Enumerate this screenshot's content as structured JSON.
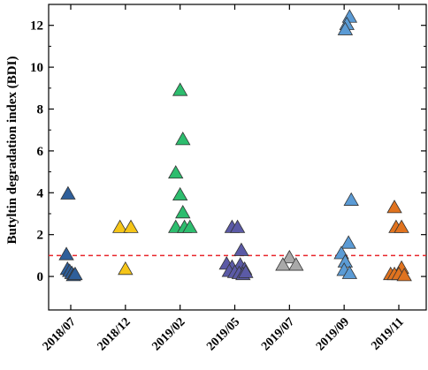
{
  "chart_data": {
    "type": "scatter",
    "title": "",
    "xlabel": "",
    "ylabel": "Butyltin degradation index (BDI)",
    "categories": [
      "2018/07",
      "2018/12",
      "2019/02",
      "2019/05",
      "2019/07",
      "2019/09",
      "2019/11"
    ],
    "ylim": [
      -1.6,
      13
    ],
    "yticks": [
      0,
      2,
      4,
      6,
      8,
      10,
      12
    ],
    "marker": "triangle",
    "reference_line": {
      "y": 1.0,
      "color": "#e8262b",
      "style": "dashed"
    },
    "series": [
      {
        "category": "2018/07",
        "color": "#2f5f9a",
        "points": [
          [
            -0.05,
            3.95
          ],
          [
            -0.08,
            1.05
          ],
          [
            -0.06,
            0.35
          ],
          [
            -0.02,
            0.25
          ],
          [
            0.02,
            0.15
          ],
          [
            0.05,
            0.05
          ],
          [
            0.08,
            0.1
          ]
        ]
      },
      {
        "category": "2018/12",
        "color": "#f5c518",
        "points": [
          [
            -0.1,
            2.35
          ],
          [
            0.1,
            2.35
          ],
          [
            0.0,
            0.35
          ]
        ]
      },
      {
        "category": "2019/02",
        "color": "#2dbd6e",
        "points": [
          [
            0.0,
            8.9
          ],
          [
            0.05,
            6.55
          ],
          [
            -0.08,
            4.95
          ],
          [
            0.0,
            3.9
          ],
          [
            0.05,
            3.05
          ],
          [
            -0.08,
            2.35
          ],
          [
            0.08,
            2.35
          ],
          [
            0.18,
            2.35
          ]
        ]
      },
      {
        "category": "2019/05",
        "color": "#5b5aa6",
        "points": [
          [
            -0.05,
            2.35
          ],
          [
            0.05,
            2.35
          ],
          [
            0.12,
            1.25
          ],
          [
            -0.15,
            0.6
          ],
          [
            -0.05,
            0.45
          ],
          [
            0.1,
            0.55
          ],
          [
            0.18,
            0.35
          ],
          [
            -0.1,
            0.25
          ],
          [
            0.0,
            0.2
          ],
          [
            0.08,
            0.15
          ],
          [
            0.15,
            0.1
          ],
          [
            0.2,
            0.2
          ]
        ]
      },
      {
        "category": "2019/07",
        "color": "#a9a9a9",
        "points": [
          [
            0.0,
            0.9
          ],
          [
            -0.12,
            0.55
          ],
          [
            0.12,
            0.55
          ]
        ]
      },
      {
        "category": "2019/09",
        "color": "#5b9bd5",
        "points": [
          [
            0.1,
            12.4
          ],
          [
            0.05,
            12.05
          ],
          [
            0.02,
            11.8
          ],
          [
            0.13,
            3.65
          ],
          [
            0.08,
            1.6
          ],
          [
            -0.05,
            1.1
          ],
          [
            0.02,
            0.7
          ],
          [
            0.0,
            0.3
          ],
          [
            0.1,
            0.15
          ]
        ]
      },
      {
        "category": "2019/11",
        "color": "#e0731f",
        "points": [
          [
            -0.08,
            3.3
          ],
          [
            -0.05,
            2.35
          ],
          [
            0.05,
            2.35
          ],
          [
            0.05,
            0.4
          ],
          [
            -0.15,
            0.1
          ],
          [
            -0.08,
            0.1
          ],
          [
            0.0,
            0.1
          ],
          [
            0.1,
            0.05
          ]
        ]
      }
    ]
  }
}
